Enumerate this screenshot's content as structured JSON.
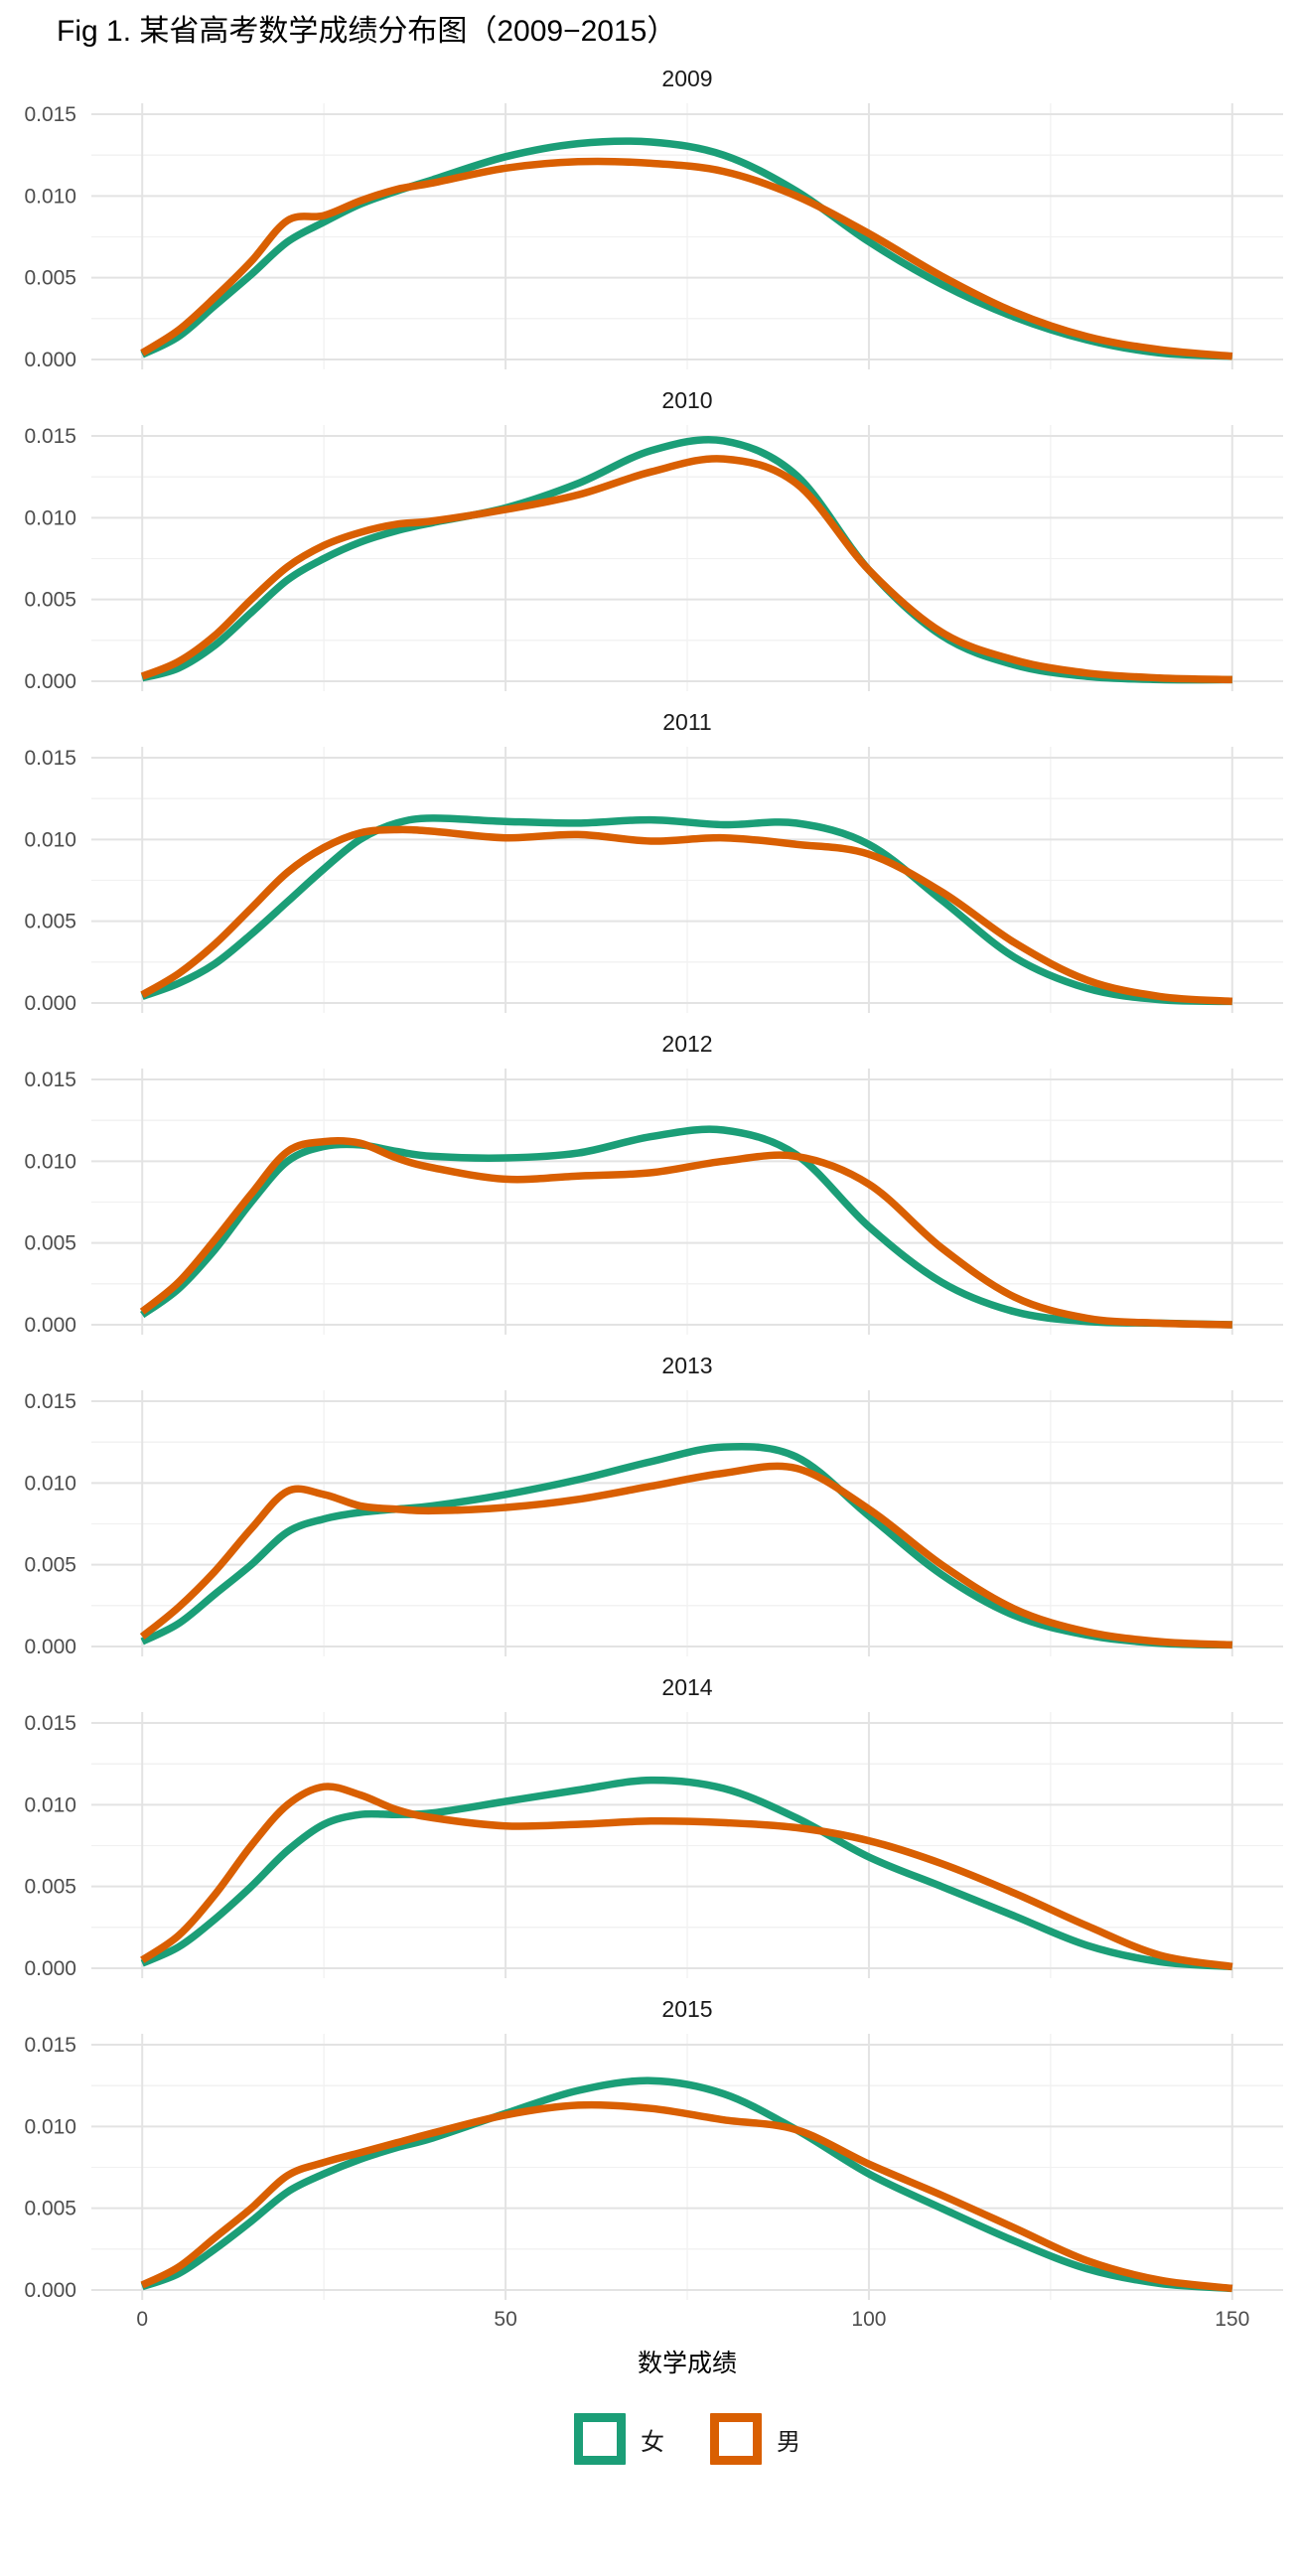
{
  "title": "Fig 1. 某省高考数学成绩分布图（2009−2015）",
  "x_axis": {
    "label": "数学成绩",
    "ticks": [
      "0",
      "50",
      "100",
      "150"
    ],
    "tick_values": [
      0,
      50,
      100,
      150
    ],
    "minor_ticks": [
      25,
      75,
      125
    ],
    "range": [
      0,
      150
    ]
  },
  "y_axis": {
    "label": "",
    "ticks": [
      "0.000",
      "0.005",
      "0.010",
      "0.015"
    ],
    "tick_values": [
      0,
      0.005,
      0.01,
      0.015
    ],
    "minor_ticks": [
      0.0025,
      0.0075,
      0.0125
    ],
    "range": [
      0,
      0.015
    ]
  },
  "legend": {
    "position": "bottom",
    "items": [
      {
        "label": "女",
        "color": "#1b9e77"
      },
      {
        "label": "男",
        "color": "#d95f02"
      }
    ]
  },
  "style": {
    "female_color": "#1b9e77",
    "male_color": "#d95f02",
    "grid_major_color": "#e3e3e3",
    "grid_minor_color": "#f1f1f1",
    "tick_label_color": "#4d4d4d",
    "facet_label_color": "#1a1a1a",
    "line_width": 7.5
  },
  "chart_data": {
    "type": "line",
    "subtype": "density",
    "title": "Fig 1. 某省高考数学成绩分布图（2009−2015）",
    "xlabel": "数学成绩",
    "ylabel": "",
    "legend_entries": [
      "女",
      "男"
    ],
    "legend_position": "bottom",
    "grid": true,
    "xlim": [
      0,
      150
    ],
    "ylim": [
      0,
      0.015
    ],
    "x": [
      0,
      5,
      10,
      15,
      20,
      25,
      30,
      35,
      40,
      50,
      60,
      70,
      80,
      90,
      100,
      110,
      120,
      130,
      140,
      150
    ],
    "facets": [
      {
        "year": "2009",
        "series": [
          {
            "name": "女",
            "values": [
              0.0003,
              0.0014,
              0.0033,
              0.0052,
              0.0072,
              0.0084,
              0.0095,
              0.0103,
              0.011,
              0.0124,
              0.0132,
              0.0133,
              0.0125,
              0.0103,
              0.0072,
              0.0046,
              0.0026,
              0.0012,
              0.0004,
              0.0002
            ]
          },
          {
            "name": "男",
            "values": [
              0.0004,
              0.0018,
              0.0038,
              0.006,
              0.0085,
              0.0088,
              0.0097,
              0.0104,
              0.0108,
              0.0117,
              0.0121,
              0.012,
              0.0115,
              0.01,
              0.0077,
              0.0051,
              0.0029,
              0.0014,
              0.0006,
              0.0002
            ]
          }
        ]
      },
      {
        "year": "2010",
        "series": [
          {
            "name": "女",
            "values": [
              0.0002,
              0.0008,
              0.0022,
              0.0042,
              0.0062,
              0.0075,
              0.0085,
              0.0092,
              0.0097,
              0.0106,
              0.0121,
              0.0141,
              0.0147,
              0.0126,
              0.0068,
              0.0028,
              0.001,
              0.0003,
              0.0001,
              0.0001
            ]
          },
          {
            "name": "男",
            "values": [
              0.0003,
              0.0012,
              0.0028,
              0.005,
              0.007,
              0.0083,
              0.0091,
              0.0096,
              0.0098,
              0.0105,
              0.0114,
              0.0128,
              0.0136,
              0.0121,
              0.0068,
              0.003,
              0.0013,
              0.0005,
              0.0002,
              0.0001
            ]
          }
        ]
      },
      {
        "year": "2011",
        "series": [
          {
            "name": "女",
            "values": [
              0.0004,
              0.0012,
              0.0024,
              0.0042,
              0.0062,
              0.0082,
              0.01,
              0.011,
              0.0113,
              0.0111,
              0.011,
              0.0112,
              0.0109,
              0.011,
              0.0097,
              0.0063,
              0.0028,
              0.0009,
              0.0002,
              0.0001
            ]
          },
          {
            "name": "男",
            "values": [
              0.0005,
              0.0018,
              0.0036,
              0.0058,
              0.008,
              0.0095,
              0.0104,
              0.0106,
              0.0105,
              0.0101,
              0.0103,
              0.0099,
              0.0101,
              0.0097,
              0.0091,
              0.0068,
              0.0037,
              0.0014,
              0.0004,
              0.0001
            ]
          }
        ]
      },
      {
        "year": "2012",
        "series": [
          {
            "name": "女",
            "values": [
              0.0006,
              0.0022,
              0.0046,
              0.0075,
              0.01,
              0.0109,
              0.011,
              0.0106,
              0.0103,
              0.0102,
              0.0105,
              0.0115,
              0.0119,
              0.0104,
              0.006,
              0.0026,
              0.0008,
              0.0002,
              0.0001,
              0.0
            ]
          },
          {
            "name": "男",
            "values": [
              0.0008,
              0.0026,
              0.0052,
              0.008,
              0.0106,
              0.0112,
              0.0111,
              0.0102,
              0.0096,
              0.0089,
              0.0091,
              0.0093,
              0.01,
              0.0103,
              0.0086,
              0.0047,
              0.0017,
              0.0004,
              0.0001,
              0.0
            ]
          }
        ]
      },
      {
        "year": "2013",
        "series": [
          {
            "name": "女",
            "values": [
              0.0003,
              0.0014,
              0.0032,
              0.005,
              0.007,
              0.0078,
              0.0082,
              0.0084,
              0.0086,
              0.0093,
              0.0102,
              0.0113,
              0.0122,
              0.0116,
              0.008,
              0.0044,
              0.0019,
              0.0007,
              0.0002,
              0.0001
            ]
          },
          {
            "name": "男",
            "values": [
              0.0006,
              0.0024,
              0.0046,
              0.0072,
              0.0095,
              0.0093,
              0.0086,
              0.0084,
              0.0083,
              0.0085,
              0.009,
              0.0098,
              0.0106,
              0.0109,
              0.0084,
              0.005,
              0.0023,
              0.0009,
              0.0003,
              0.0001
            ]
          }
        ]
      },
      {
        "year": "2014",
        "series": [
          {
            "name": "女",
            "values": [
              0.0003,
              0.0013,
              0.003,
              0.005,
              0.0072,
              0.0088,
              0.0094,
              0.0094,
              0.0095,
              0.0102,
              0.0109,
              0.0115,
              0.011,
              0.0092,
              0.0068,
              0.005,
              0.0032,
              0.0014,
              0.0004,
              0.0001
            ]
          },
          {
            "name": "男",
            "values": [
              0.0005,
              0.002,
              0.0045,
              0.0075,
              0.01,
              0.0111,
              0.0106,
              0.0097,
              0.0092,
              0.0087,
              0.0088,
              0.009,
              0.0089,
              0.0086,
              0.0078,
              0.0064,
              0.0046,
              0.0026,
              0.0008,
              0.0001
            ]
          }
        ]
      },
      {
        "year": "2015",
        "series": [
          {
            "name": "女",
            "values": [
              0.0002,
              0.001,
              0.0025,
              0.0042,
              0.006,
              0.0071,
              0.008,
              0.0087,
              0.0093,
              0.0108,
              0.0122,
              0.0128,
              0.012,
              0.0098,
              0.0071,
              0.005,
              0.003,
              0.0013,
              0.0004,
              0.0001
            ]
          },
          {
            "name": "男",
            "values": [
              0.0003,
              0.0014,
              0.0032,
              0.005,
              0.007,
              0.0078,
              0.0084,
              0.009,
              0.0096,
              0.0107,
              0.0113,
              0.0111,
              0.0104,
              0.0098,
              0.0077,
              0.0058,
              0.0038,
              0.0018,
              0.0006,
              0.0001
            ]
          }
        ]
      }
    ]
  }
}
